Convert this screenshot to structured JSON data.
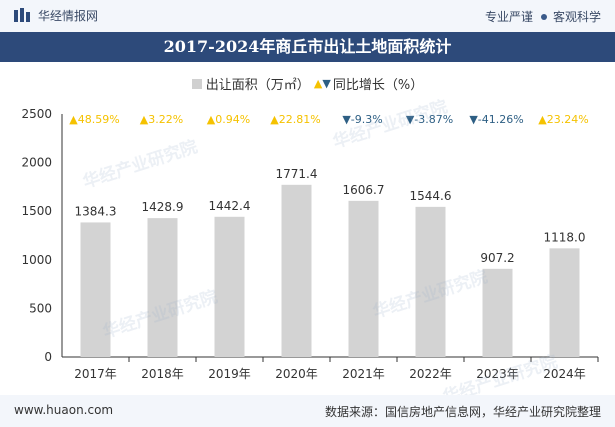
{
  "header": {
    "logo_text": "华经情报网",
    "right_label_1": "专业严谨",
    "right_label_2": "客观科学"
  },
  "watermark": "华经产业研究院",
  "chart_data": {
    "type": "bar",
    "title": "2017-2024年商丘市出让土地面积统计",
    "legend": {
      "bar_label": "出让面积（万㎡）",
      "growth_label": "同比增长（%）"
    },
    "categories": [
      "2017年",
      "2018年",
      "2019年",
      "2020年",
      "2021年",
      "2022年",
      "2023年",
      "2024年"
    ],
    "values": [
      1384.3,
      1428.9,
      1442.4,
      1771.4,
      1606.7,
      1544.6,
      907.2,
      1118.0
    ],
    "value_labels": [
      "1384.3",
      "1428.9",
      "1442.4",
      "1771.4",
      "1606.7",
      "1544.6",
      "907.2",
      "1118.0"
    ],
    "growth": [
      "48.59%",
      "3.22%",
      "0.94%",
      "22.81%",
      "-9.3%",
      "-3.87%",
      "-41.26%",
      "23.24%"
    ],
    "growth_direction": [
      "up",
      "up",
      "up",
      "up",
      "down",
      "down",
      "down",
      "up"
    ],
    "ylim": [
      0,
      2500
    ],
    "yticks": [
      0,
      500,
      1000,
      1500,
      2000,
      2500
    ],
    "colors": {
      "bar": "#d3d3d3",
      "up": "#f5c200",
      "down": "#2e5f84"
    }
  },
  "footer": {
    "website": "www.huaon.com",
    "source": "数据来源：国信房地产信息网，华经产业研究院整理"
  }
}
